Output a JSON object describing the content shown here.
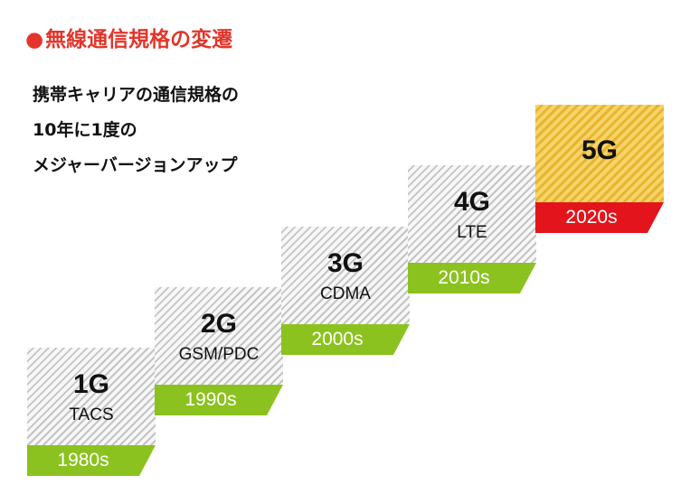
{
  "title": {
    "bullet": "●",
    "text": "無線通信規格の変遷"
  },
  "intro": {
    "lines": [
      "携帯キャリアの通信規格の",
      "10年に1度の",
      "メジャーバージョンアップ"
    ]
  },
  "colors": {
    "title": "#e3352b",
    "band_default": "#8cc21f",
    "band_highlight": "#e3141b",
    "tile_highlight": "#f6d46a"
  },
  "generations": [
    {
      "gen": "1G",
      "tech": "TACS",
      "era": "1980s",
      "highlight": false
    },
    {
      "gen": "2G",
      "tech": "GSM/PDC",
      "era": "1990s",
      "highlight": false
    },
    {
      "gen": "3G",
      "tech": "CDMA",
      "era": "2000s",
      "highlight": false
    },
    {
      "gen": "4G",
      "tech": "LTE",
      "era": "2010s",
      "highlight": false
    },
    {
      "gen": "5G",
      "tech": "",
      "era": "2020s",
      "highlight": true
    }
  ]
}
